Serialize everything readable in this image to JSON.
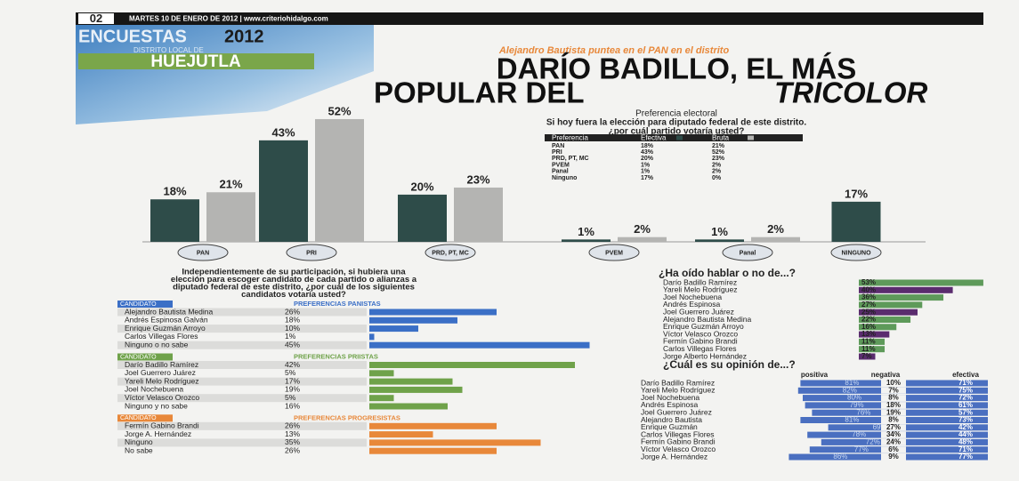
{
  "header": {
    "page": "02",
    "dateline": "MARTES 10 DE ENERO DE 2012 | www.criteriohidalgo.com",
    "section": "ENCUESTAS",
    "year": "2012",
    "district": "DISTRITO LOCAL DE",
    "town": "HUEJUTLA",
    "kicker": "Alejandro Bautista puntea en el PAN en el distrito",
    "headline": [
      "DARÍO BADILLO, EL MÁS",
      "POPULAR DEL"
    ],
    "headline_italic": "TRICOLOR"
  },
  "chart_data": {
    "type": "bar",
    "title": "Preferencia electoral",
    "subtitle": [
      "Si hoy fuera la elección para diputado federal de este distrito.",
      "¿por cuál partido votaría usted?"
    ],
    "categories": [
      "PAN",
      "PRI",
      "PRD, PT, MC",
      "PVEM",
      "Panal",
      "NINGUNO"
    ],
    "series": [
      {
        "name": "Efectiva",
        "color": "#2e4c49",
        "values": [
          18,
          43,
          20,
          1,
          1,
          17
        ],
        "value_labels": [
          "18%",
          "43%",
          "20%",
          "1%",
          "1%",
          "17%"
        ]
      },
      {
        "name": "Bruta",
        "color": "#b4b4b2",
        "values": [
          21,
          52,
          23,
          2,
          2,
          null
        ],
        "value_labels": [
          "21%",
          "52%",
          "23%",
          "2%",
          "2%",
          null
        ]
      }
    ],
    "ylim": [
      0,
      55
    ]
  },
  "table": {
    "header": [
      "Preferencia",
      "Efectiva",
      "Bruta"
    ],
    "rows": [
      [
        "PAN",
        "18%",
        "21%"
      ],
      [
        "PRI",
        "43%",
        "52%"
      ],
      [
        "PRD, PT, MC",
        "20%",
        "23%"
      ],
      [
        "PVEM",
        "1%",
        "2%"
      ],
      [
        "Panal",
        "1%",
        "2%"
      ],
      [
        "Ninguno",
        "17%",
        "0%"
      ]
    ]
  },
  "candidates": {
    "question": [
      "Independientemente de su participación, si hubiera una",
      "elección para escoger candidato de cada partido o alianzas a",
      "diputado federal de este distrito, ¿por cuál de los siguientes",
      "candidatos votaría usted?"
    ],
    "header": "CANDIDATO",
    "groups": [
      {
        "title": "PREFERENCIAS PANISTAS",
        "color": "#3b6fc6",
        "rows": [
          {
            "name": "Alejandro Bautista Medina",
            "value": 26,
            "label": "26%"
          },
          {
            "name": "Andrés Espinosa Galván",
            "value": 18,
            "label": "18%"
          },
          {
            "name": "Enrique Guzmán Arroyo",
            "value": 10,
            "label": "10%"
          },
          {
            "name": "Carlos Villegas Flores",
            "value": 1,
            "label": "1%"
          },
          {
            "name": "Ninguno o no sabe",
            "value": 45,
            "label": "45%"
          }
        ]
      },
      {
        "title": "PREFERENCIAS PRIISTAS",
        "color": "#6fa24a",
        "rows": [
          {
            "name": "Darío Badillo Ramírez",
            "value": 42,
            "label": "42%"
          },
          {
            "name": "Joel Guerrero Juárez",
            "value": 5,
            "label": "5%"
          },
          {
            "name": "Yareli Melo Rodríguez",
            "value": 17,
            "label": "17%"
          },
          {
            "name": "Joel Nochebuena",
            "value": 19,
            "label": "19%"
          },
          {
            "name": "Víctor Velasco Orozco",
            "value": 5,
            "label": "5%"
          },
          {
            "name": "Ninguno y no sabe",
            "value": 16,
            "label": "16%"
          }
        ]
      },
      {
        "title": "PREFERENCIAS PROGRESISTAS",
        "color": "#e8883a",
        "rows": [
          {
            "name": "Fermín Gabino Brandi",
            "value": 26,
            "label": "26%"
          },
          {
            "name": "Jorge A. Hernández",
            "value": 13,
            "label": "13%"
          },
          {
            "name": "Ninguno",
            "value": 35,
            "label": "35%"
          },
          {
            "name": "No sabe",
            "value": 26,
            "label": "26%"
          }
        ]
      }
    ]
  },
  "awareness": {
    "title": "¿Ha oído hablar o no de...?",
    "color": "#5e9a5a",
    "rows": [
      {
        "name": "Darío Badillo Ramírez",
        "value": 53,
        "label": "53%"
      },
      {
        "name": "Yareli Melo Rodríguez",
        "value": 40,
        "label": "40%"
      },
      {
        "name": "Joel Nochebuena",
        "value": 36,
        "label": "36%"
      },
      {
        "name": "Andrés Espinosa",
        "value": 27,
        "label": "27%"
      },
      {
        "name": "Joel Guerrero Juárez",
        "value": 25,
        "label": "25%"
      },
      {
        "name": "Alejandro Bautista Medina",
        "value": 22,
        "label": "22%"
      },
      {
        "name": "Enrique Guzmán Arroyo",
        "value": 16,
        "label": "16%"
      },
      {
        "name": "Víctor Velasco Orozco",
        "value": 13,
        "label": "13%"
      },
      {
        "name": "Fermín Gabino Brandi",
        "value": 11,
        "label": "11%"
      },
      {
        "name": "Carlos Villegas Flores",
        "value": 11,
        "label": "11%"
      },
      {
        "name": "Jorge Alberto Hernández",
        "value": 7,
        "label": "7%"
      }
    ]
  },
  "opinion": {
    "title": "¿Cuál es su opinión de...?",
    "headers": [
      "positiva",
      "negativa",
      "efectiva"
    ],
    "rows": [
      {
        "name": "Darío Badillo Ramírez",
        "values": [
          81,
          10,
          71
        ],
        "labels": [
          "81%",
          "10%",
          "71%"
        ]
      },
      {
        "name": "Yareli Melo Rodríguez",
        "values": [
          82,
          7,
          75
        ],
        "labels": [
          "82%",
          "7%",
          "75%"
        ]
      },
      {
        "name": "Joel Nochebuena",
        "values": [
          80,
          8,
          72
        ],
        "labels": [
          "80%",
          "8%",
          "72%"
        ]
      },
      {
        "name": "Andrés Espinosa",
        "values": [
          79,
          18,
          61
        ],
        "labels": [
          "79%",
          "18%",
          "61%"
        ]
      },
      {
        "name": "Joel Guerrero Juárez",
        "values": [
          76,
          19,
          57
        ],
        "labels": [
          "76%",
          "19%",
          "57%"
        ]
      },
      {
        "name": "Alejandro Bautista",
        "values": [
          81,
          8,
          73
        ],
        "labels": [
          "81%",
          "8%",
          "73%"
        ]
      },
      {
        "name": "Enrique Guzmán",
        "values": [
          69,
          27,
          42
        ],
        "labels": [
          "69%",
          "27%",
          "42%"
        ]
      },
      {
        "name": "Carlos Villegas Flores",
        "values": [
          78,
          34,
          44
        ],
        "labels": [
          "78%",
          "34%",
          "44%"
        ]
      },
      {
        "name": "Fermín Gabino Brandi",
        "values": [
          72,
          24,
          48
        ],
        "labels": [
          "72%",
          "24%",
          "48%"
        ]
      },
      {
        "name": "Víctor Velasco Orozco",
        "values": [
          77,
          6,
          71
        ],
        "labels": [
          "77%",
          "6%",
          "71%"
        ]
      },
      {
        "name": "Jorge A. Hernández",
        "values": [
          86,
          9,
          77
        ],
        "labels": [
          "86%",
          "9%",
          "77%"
        ]
      }
    ]
  }
}
